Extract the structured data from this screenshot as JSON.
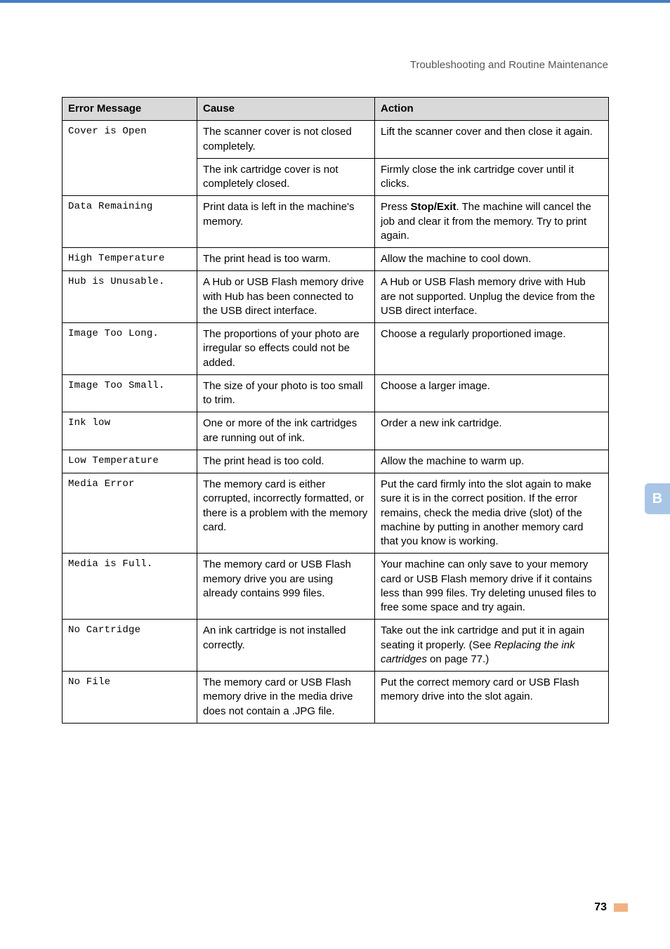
{
  "header": {
    "section_title": "Troubleshooting and Routine Maintenance"
  },
  "table": {
    "headers": {
      "col1": "Error Message",
      "col2": "Cause",
      "col3": "Action"
    },
    "rows": [
      {
        "msg": "Cover is Open",
        "subrows": [
          {
            "cause": "The scanner cover is not closed completely.",
            "action": "Lift the scanner cover and then close it again."
          },
          {
            "cause": "The ink cartridge cover is not completely closed.",
            "action": "Firmly close the ink cartridge cover until it clicks."
          }
        ]
      },
      {
        "msg": "Data Remaining",
        "cause": "Print data is left in the machine's memory.",
        "action_html": "Press <b>Stop/Exit</b>. The machine will cancel the job and clear it from the memory. Try to print again."
      },
      {
        "msg": "High Temperature",
        "cause": "The print head is too warm.",
        "action": "Allow the machine to cool down."
      },
      {
        "msg": "Hub is Unusable.",
        "cause": "A Hub or USB Flash memory drive with Hub has been connected to the USB direct interface.",
        "action": "A Hub or USB Flash memory drive with Hub are not supported. Unplug the device from the USB direct interface."
      },
      {
        "msg": "Image Too Long.",
        "cause": "The proportions of your photo are irregular so effects could not be added.",
        "action": "Choose a regularly proportioned image."
      },
      {
        "msg": "Image Too Small.",
        "cause": "The size of your photo is too small to trim.",
        "action": "Choose a larger image."
      },
      {
        "msg": "Ink low",
        "cause": "One or more of the ink cartridges are running out of ink.",
        "action": "Order a new ink cartridge."
      },
      {
        "msg": "Low Temperature",
        "cause": "The print head is too cold.",
        "action": "Allow the machine to warm up."
      },
      {
        "msg": "Media Error",
        "cause": "The memory card is either corrupted, incorrectly formatted, or there is a problem with the memory card.",
        "action": "Put the card firmly into the slot again to make sure it is in the correct position. If the error remains, check the media drive (slot) of the machine by putting in another memory card that you know is working."
      },
      {
        "msg": "Media is Full.",
        "cause": "The memory card or USB Flash memory drive you are using already contains 999 files.",
        "action": "Your machine can only save to your memory card or USB Flash memory drive if it contains less than 999 files. Try deleting unused files to free some space and try again."
      },
      {
        "msg": "No Cartridge",
        "cause": "An ink cartridge is not installed correctly.",
        "action_html": "Take out the ink cartridge and put it in again seating it properly. (See <em>Replacing the ink cartridges</em> on page 77.)"
      },
      {
        "msg": "No File",
        "cause": "The memory card or USB Flash memory drive in the media drive does not contain a .JPG file.",
        "action": "Put the correct memory card or USB Flash memory drive into the slot again."
      }
    ]
  },
  "side_tab": {
    "label": "B",
    "bg": "#a9c5e6",
    "fg": "#ffffff"
  },
  "footer": {
    "page_number": "73",
    "bar_color": "#f3b183"
  },
  "colors": {
    "topbar": "#457fc1",
    "header_text": "#555555",
    "th_bg": "#d9d9d9",
    "border": "#000000"
  }
}
